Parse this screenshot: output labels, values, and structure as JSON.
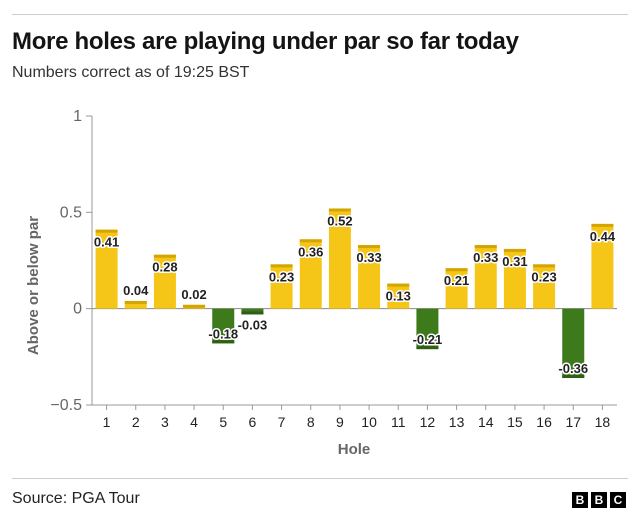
{
  "header": {
    "title": "More holes are playing under par so far today",
    "subtitle": "Numbers correct as of 19:25 BST"
  },
  "footer": {
    "source": "Source: PGA Tour",
    "logo": [
      "B",
      "B",
      "C"
    ]
  },
  "colors": {
    "positive": "#f5c518",
    "positive_edge": "#d4a500",
    "negative": "#3d7a1b",
    "negative_edge": "#2f5f14",
    "axis_text": "#666666"
  },
  "chart_data": {
    "type": "bar",
    "title": "More holes are playing under par so far today",
    "xlabel": "Hole",
    "ylabel": "Above or below par",
    "ylim": [
      -0.5,
      1
    ],
    "yticks": [
      {
        "value": -0.5,
        "label": "−0.5"
      },
      {
        "value": 0,
        "label": "0"
      },
      {
        "value": 0.5,
        "label": "0.5"
      },
      {
        "value": 1,
        "label": "1"
      }
    ],
    "categories": [
      "1",
      "2",
      "3",
      "4",
      "5",
      "6",
      "7",
      "8",
      "9",
      "10",
      "11",
      "12",
      "13",
      "14",
      "15",
      "16",
      "17",
      "18"
    ],
    "values": [
      0.41,
      0.04,
      0.28,
      0.02,
      -0.18,
      -0.03,
      0.23,
      0.36,
      0.52,
      0.33,
      0.13,
      -0.21,
      0.21,
      0.33,
      0.31,
      0.23,
      -0.36,
      0.44
    ],
    "labels": [
      "0.41",
      "0.04",
      "0.28",
      "0.02",
      "-0.18",
      "-0.03",
      "0.23",
      "0.36",
      "0.52",
      "0.33",
      "0.13",
      "-0.21",
      "0.21",
      "0.33",
      "0.31",
      "0.23",
      "-0.36",
      "0.44"
    ]
  }
}
